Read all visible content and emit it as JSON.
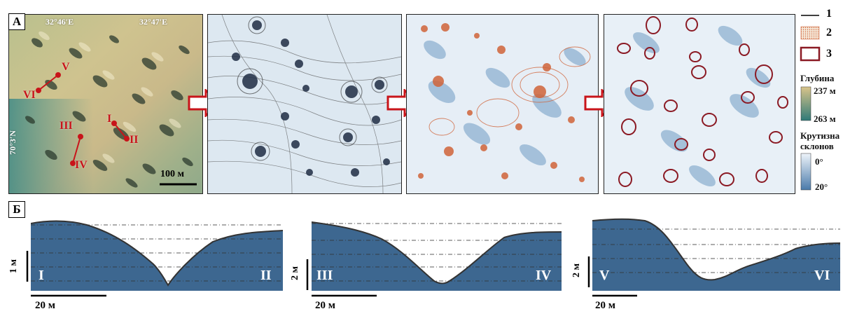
{
  "panels": {
    "a_label": "А",
    "b_label": "Б"
  },
  "map1": {
    "coord_lon_1": "32°46′E",
    "coord_lon_2": "32°47′E",
    "coord_lat": "70°3′N",
    "points": {
      "V": "V",
      "VI": "VI",
      "I": "I",
      "II": "II",
      "III": "III",
      "IV": "IV"
    },
    "scale": "100 м"
  },
  "legend": {
    "item1": "1",
    "item2": "2",
    "item3": "3",
    "depth_title": "Глубина",
    "depth_min": "237 м",
    "depth_max": "263 м",
    "slope_title_1": "Крутизна",
    "slope_title_2": "склонов",
    "slope_min": "0°",
    "slope_max": "20°"
  },
  "profiles": [
    {
      "start": "I",
      "end": "II",
      "vscale": "1 м",
      "hscale": "20 м"
    },
    {
      "start": "III",
      "end": "IV",
      "vscale": "2 м",
      "hscale": "20 м"
    },
    {
      "start": "V",
      "end": "VI",
      "vscale": "2 м",
      "hscale": "20 м"
    }
  ],
  "colors": {
    "profile_fill": "#3d6790",
    "profile_line": "#333333",
    "point_red": "#c8141a",
    "contour_orange": "#d0643a",
    "outline_dark_red": "#8b1a24",
    "depth_shallow": "#d9c48a",
    "depth_deep": "#2f7a78",
    "slope_low": "#eef4fa",
    "slope_high": "#4a7aaa"
  }
}
